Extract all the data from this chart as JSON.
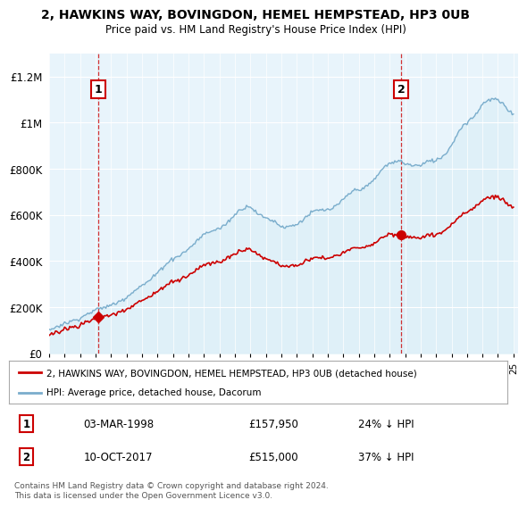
{
  "title": "2, HAWKINS WAY, BOVINGDON, HEMEL HEMPSTEAD, HP3 0UB",
  "subtitle": "Price paid vs. HM Land Registry's House Price Index (HPI)",
  "sale1_date": "03-MAR-1998",
  "sale1_price": 157950,
  "sale1_price_str": "£157,950",
  "sale1_hpi_pct": "24% ↓ HPI",
  "sale2_date": "10-OCT-2017",
  "sale2_price": 515000,
  "sale2_price_str": "£515,000",
  "sale2_hpi_pct": "37% ↓ HPI",
  "red_color": "#cc0000",
  "blue_color": "#7aadcc",
  "blue_fill": "#ddeeff",
  "legend_label1": "2, HAWKINS WAY, BOVINGDON, HEMEL HEMPSTEAD, HP3 0UB (detached house)",
  "legend_label2": "HPI: Average price, detached house, Dacorum",
  "footer": "Contains HM Land Registry data © Crown copyright and database right 2024.\nThis data is licensed under the Open Government Licence v3.0.",
  "ylim_max": 1300000,
  "sale1_year_float": 1998.17,
  "sale2_year_float": 2017.75
}
